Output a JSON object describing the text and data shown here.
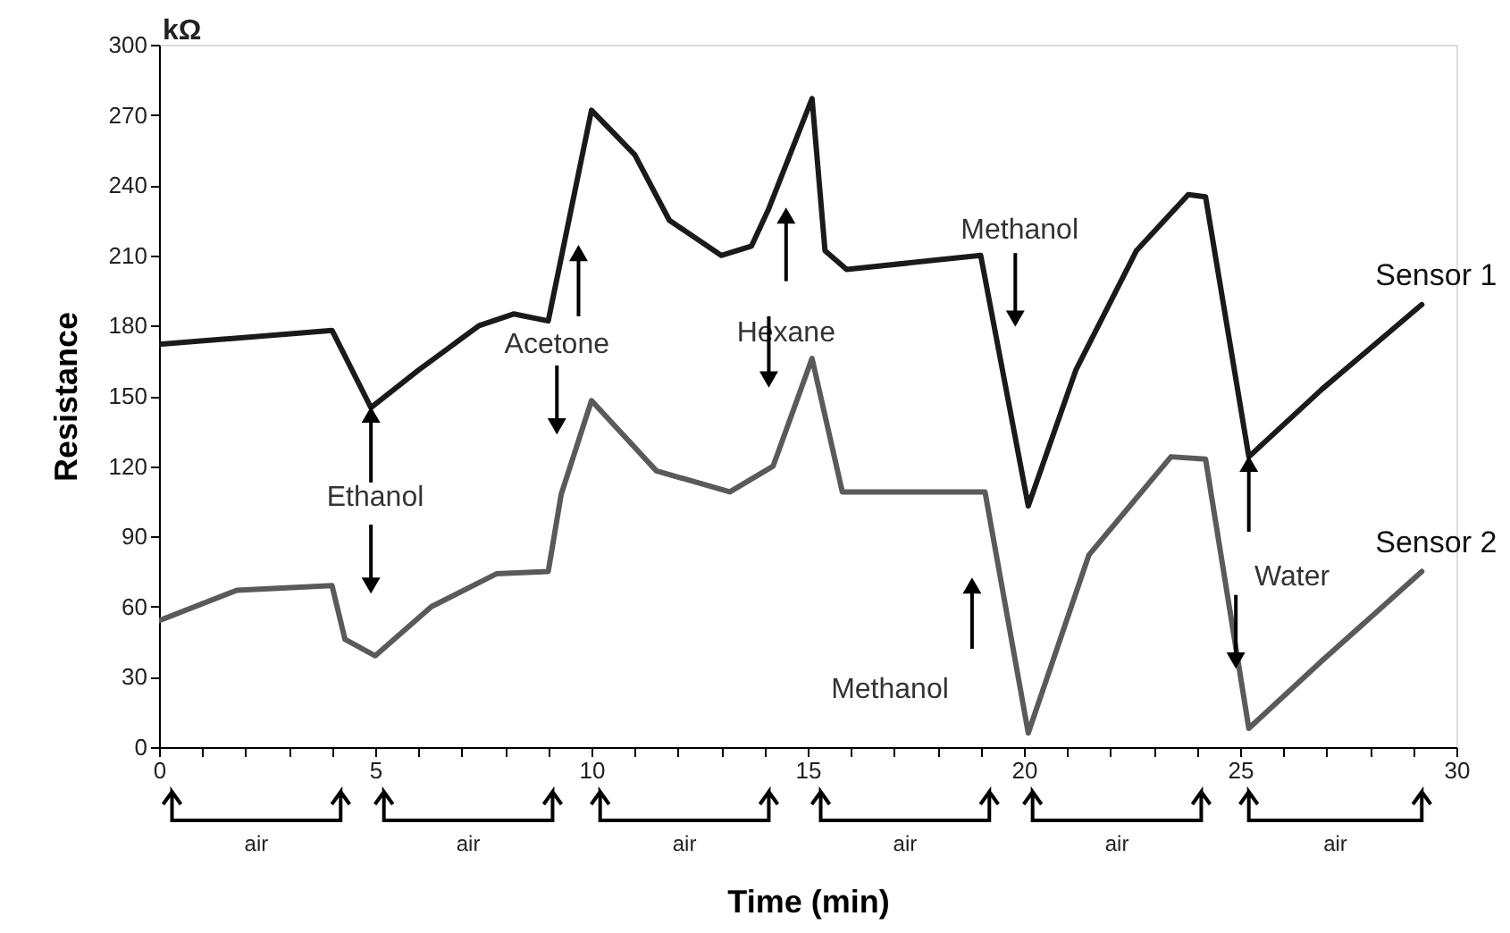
{
  "chart_data": {
    "type": "line",
    "xlabel": "Time (min)",
    "ylabel": "Resistance",
    "xlim": [
      0,
      30
    ],
    "ylim": [
      0,
      300
    ],
    "xticks": [
      0,
      {
        "value": 1,
        "label": null
      },
      {
        "value": 2,
        "label": null
      },
      {
        "value": 3,
        "label": null
      },
      {
        "value": 4,
        "label": null
      },
      5,
      {
        "value": 6,
        "label": null
      },
      {
        "value": 7,
        "label": null
      },
      {
        "value": 8,
        "label": null
      },
      {
        "value": 9,
        "label": null
      },
      10,
      {
        "value": 11,
        "label": null
      },
      {
        "value": 12,
        "label": null
      },
      {
        "value": 13,
        "label": null
      },
      {
        "value": 14,
        "label": null
      },
      15,
      {
        "value": 16,
        "label": null
      },
      {
        "value": 17,
        "label": null
      },
      {
        "value": 18,
        "label": null
      },
      {
        "value": 19,
        "label": null
      },
      20,
      {
        "value": 21,
        "label": null
      },
      {
        "value": 22,
        "label": null
      },
      {
        "value": 23,
        "label": null
      },
      {
        "value": 24,
        "label": null
      },
      25,
      {
        "value": 26,
        "label": null
      },
      {
        "value": 27,
        "label": null
      },
      {
        "value": 28,
        "label": null
      },
      {
        "value": 29,
        "label": null
      },
      30
    ],
    "yticks": [
      0,
      30,
      60,
      90,
      120,
      150,
      180,
      210,
      240,
      270,
      300
    ],
    "grid": false,
    "marker": "none",
    "line_style": "solid",
    "series": [
      {
        "name": "Sensor 1",
        "color": "#1a1a1a",
        "x": [
          0,
          4.0,
          4.9,
          6.0,
          7.4,
          8.2,
          9.0,
          10.0,
          11.0,
          11.8,
          13.0,
          13.7,
          14.1,
          15.1,
          15.4,
          15.9,
          19.0,
          20.1,
          21.2,
          22.6,
          23.8,
          24.2,
          25.2,
          26.9,
          29.2
        ],
        "values": [
          172,
          178,
          145,
          161,
          180,
          185,
          182,
          272,
          253,
          225,
          210,
          214,
          230,
          277,
          212,
          204,
          210,
          103,
          161,
          212,
          236,
          235,
          124,
          153,
          189
        ]
      },
      {
        "name": "Sensor 2",
        "color": "#5a5a5a",
        "x": [
          0,
          1.8,
          4.0,
          4.3,
          5.0,
          6.3,
          7.8,
          9.0,
          9.3,
          10.0,
          11.5,
          13.2,
          14.2,
          15.1,
          15.8,
          19.1,
          20.1,
          21.5,
          23.4,
          24.2,
          25.2,
          26.9,
          29.2
        ],
        "values": [
          54,
          67,
          69,
          46,
          39,
          60,
          74,
          75,
          108,
          148,
          118,
          109,
          120,
          166,
          109,
          109,
          6,
          82,
          124,
          123,
          8,
          37,
          75
        ]
      }
    ],
    "annotations": [
      "kΩ",
      {
        "text": "Ethanol",
        "x": 4.9,
        "y": 145
      },
      "Acetone",
      "Hexane",
      "Methanol",
      "Methanol",
      {
        "text": "Water",
        "x": 25.2,
        "y": 124
      },
      "air",
      "air",
      "air",
      "air",
      "air",
      "air"
    ]
  }
}
